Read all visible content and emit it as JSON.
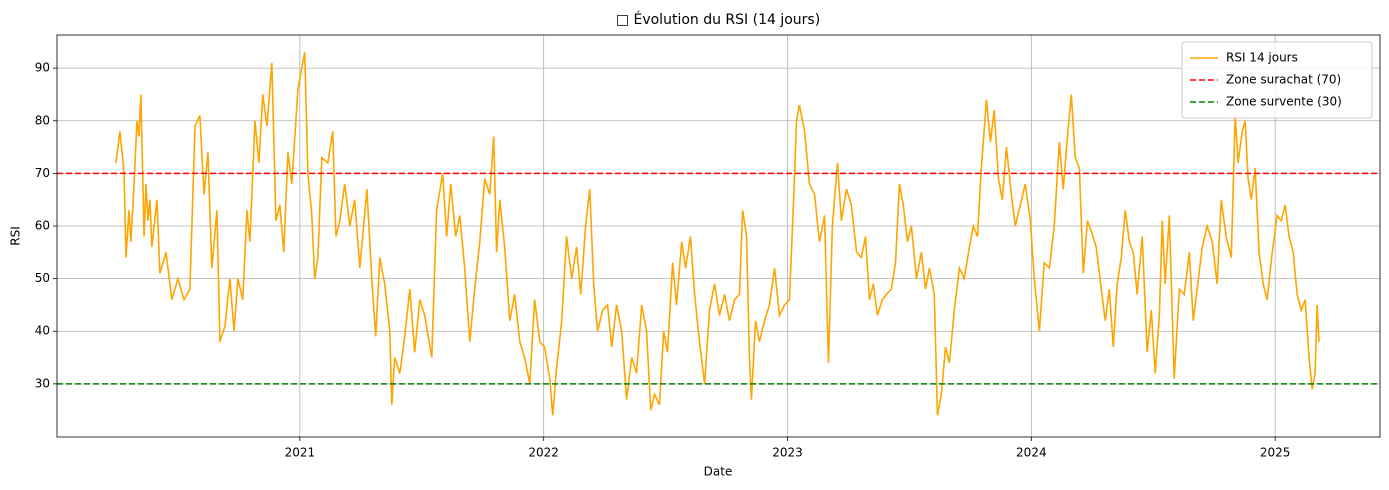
{
  "chart_data": {
    "type": "line",
    "title": "□ Évolution du RSI (14 jours)",
    "xlabel": "Date",
    "ylabel": "RSI",
    "xlim": [
      2020.004,
      2025.43
    ],
    "ylim": [
      19.9,
      96.3
    ],
    "xticks": [
      2021,
      2022,
      2023,
      2024,
      2025
    ],
    "yticks": [
      30,
      40,
      50,
      60,
      70,
      80,
      90
    ],
    "grid": true,
    "legend": "upper right",
    "series": [
      {
        "name": "RSI 14 jours",
        "color": "#ffa500",
        "x": [
          2020.246,
          2020.262,
          2020.279,
          2020.287,
          2020.299,
          2020.307,
          2020.32,
          2020.332,
          2020.34,
          2020.348,
          2020.361,
          2020.369,
          2020.377,
          2020.385,
          2020.393,
          2020.414,
          2020.426,
          2020.451,
          2020.475,
          2020.5,
          2020.525,
          2020.549,
          2020.57,
          2020.59,
          2020.607,
          2020.623,
          2020.639,
          2020.66,
          2020.672,
          2020.693,
          2020.713,
          2020.73,
          2020.746,
          2020.766,
          2020.783,
          2020.795,
          2020.816,
          2020.832,
          2020.848,
          2020.865,
          2020.885,
          2020.902,
          2020.918,
          2020.934,
          2020.951,
          2020.967,
          2020.992,
          2021.02,
          2021.033,
          2021.049,
          2021.061,
          2021.074,
          2021.09,
          2021.115,
          2021.135,
          2021.148,
          2021.164,
          2021.184,
          2021.205,
          2021.225,
          2021.246,
          2021.275,
          2021.295,
          2021.311,
          2021.328,
          2021.348,
          2021.369,
          2021.377,
          2021.389,
          2021.41,
          2021.43,
          2021.451,
          2021.471,
          2021.492,
          2021.512,
          2021.541,
          2021.561,
          2021.586,
          2021.602,
          2021.619,
          2021.639,
          2021.656,
          2021.676,
          2021.697,
          2021.717,
          2021.738,
          2021.758,
          2021.779,
          2021.795,
          2021.807,
          2021.82,
          2021.84,
          2021.861,
          2021.881,
          2021.902,
          2021.922,
          2021.943,
          2021.963,
          2021.984,
          2022.004,
          2022.025,
          2022.037,
          2022.053,
          2022.074,
          2022.094,
          2022.115,
          2022.135,
          2022.152,
          2022.172,
          2022.189,
          2022.205,
          2022.221,
          2022.242,
          2022.262,
          2022.279,
          2022.299,
          2022.32,
          2022.34,
          2022.361,
          2022.381,
          2022.402,
          2022.422,
          2022.439,
          2022.455,
          2022.475,
          2022.492,
          2022.508,
          2022.529,
          2022.545,
          2022.566,
          2022.582,
          2022.602,
          2022.619,
          2022.639,
          2022.66,
          2022.68,
          2022.701,
          2022.721,
          2022.742,
          2022.762,
          2022.783,
          2022.803,
          2022.816,
          2022.832,
          2022.844,
          2022.852,
          2022.869,
          2022.885,
          2022.906,
          2022.926,
          2022.947,
          2022.967,
          2022.988,
          2023.008,
          2023.025,
          2023.037,
          2023.049,
          2023.07,
          2023.09,
          2023.111,
          2023.131,
          2023.152,
          2023.168,
          2023.184,
          2023.205,
          2023.221,
          2023.242,
          2023.262,
          2023.283,
          2023.303,
          2023.32,
          2023.336,
          2023.352,
          2023.369,
          2023.389,
          2023.406,
          2023.426,
          2023.443,
          2023.459,
          2023.475,
          2023.492,
          2023.508,
          2023.529,
          2023.549,
          2023.566,
          2023.582,
          2023.602,
          2023.615,
          2023.631,
          2023.648,
          2023.664,
          2023.684,
          2023.705,
          2023.725,
          2023.746,
          2023.762,
          2023.779,
          2023.795,
          2023.816,
          2023.832,
          2023.848,
          2023.865,
          2023.881,
          2023.898,
          2023.918,
          2023.934,
          2023.955,
          2023.975,
          2023.996,
          2024.012,
          2024.033,
          2024.053,
          2024.074,
          2024.094,
          2024.115,
          2024.131,
          2024.148,
          2024.164,
          2024.18,
          2024.197,
          2024.213,
          2024.23,
          2024.246,
          2024.266,
          2024.287,
          2024.303,
          2024.32,
          2024.336,
          2024.352,
          2024.369,
          2024.385,
          2024.402,
          2024.418,
          2024.434,
          2024.455,
          2024.475,
          2024.492,
          2024.508,
          2024.525,
          2024.537,
          2024.549,
          2024.566,
          2024.586,
          2024.607,
          2024.627,
          2024.648,
          2024.664,
          2024.68,
          2024.701,
          2024.721,
          2024.742,
          2024.762,
          2024.779,
          2024.799,
          2024.82,
          2024.836,
          2024.848,
          2024.865,
          2024.877,
          2024.889,
          2024.902,
          2024.918,
          2024.934,
          2024.951,
          2024.967,
          2024.988,
          2025.008,
          2025.025,
          2025.041,
          2025.057,
          2025.074,
          2025.09,
          2025.107,
          2025.123,
          2025.139,
          2025.152,
          2025.164,
          2025.172,
          2025.18
        ],
        "values": [
          72,
          78,
          70,
          54,
          63,
          57,
          68,
          80,
          77,
          85,
          58,
          68,
          61,
          65,
          56,
          65,
          51,
          55,
          46,
          50,
          46,
          48,
          79,
          81,
          66,
          74,
          52,
          63,
          38,
          41,
          50,
          40,
          50,
          46,
          63,
          57,
          80,
          72,
          85,
          79,
          91,
          61,
          64,
          55,
          74,
          68,
          86,
          93,
          70,
          62,
          50,
          54,
          73,
          72,
          78,
          58,
          61,
          68,
          60,
          65,
          52,
          67,
          50,
          39,
          54,
          49,
          40,
          26,
          35,
          32,
          39,
          48,
          36,
          46,
          43,
          35,
          63,
          70,
          58,
          68,
          58,
          62,
          52,
          38,
          48,
          57,
          69,
          66,
          77,
          55,
          65,
          56,
          42,
          47,
          38,
          35,
          30,
          46,
          38,
          37,
          31,
          24,
          33,
          42,
          58,
          50,
          56,
          47,
          60,
          67,
          49,
          40,
          44,
          45,
          37,
          45,
          40,
          27,
          35,
          32,
          45,
          40,
          25,
          28,
          26,
          40,
          36,
          53,
          45,
          57,
          52,
          58,
          47,
          38,
          30,
          44,
          49,
          43,
          47,
          42,
          46,
          47,
          63,
          58,
          35,
          27,
          42,
          38,
          42,
          45,
          52,
          43,
          45,
          46,
          65,
          80,
          83,
          78,
          68,
          66,
          57,
          62,
          34,
          60,
          72,
          61,
          67,
          64,
          55,
          54,
          58,
          46,
          49,
          43,
          46,
          47,
          48,
          53,
          68,
          64,
          57,
          60,
          50,
          55,
          48,
          52,
          47,
          24,
          28,
          37,
          34,
          44,
          52,
          50,
          56,
          60,
          58,
          71,
          84,
          76,
          82,
          69,
          65,
          75,
          66,
          60,
          64,
          68,
          61,
          50,
          40,
          53,
          52,
          60,
          76,
          67,
          77,
          85,
          73,
          71,
          51,
          61,
          59,
          56,
          48,
          42,
          48,
          37,
          49,
          54,
          63,
          57,
          55,
          47,
          58,
          36,
          44,
          32,
          43,
          61,
          49,
          62,
          31,
          48,
          47,
          55,
          42,
          48,
          56,
          60,
          57,
          49,
          65,
          58,
          54,
          81,
          72,
          78,
          80,
          69,
          65,
          71,
          55,
          49,
          46,
          55,
          62,
          61,
          64,
          58,
          55,
          47,
          44,
          46,
          35,
          29,
          32,
          45,
          38
        ]
      }
    ],
    "hlines": [
      {
        "name": "Zone surachat (70)",
        "color": "#ff0000",
        "value": 70,
        "style": "dashed"
      },
      {
        "name": "Zone survente (30)",
        "color": "#008000",
        "value": 30,
        "style": "dashed"
      }
    ]
  }
}
